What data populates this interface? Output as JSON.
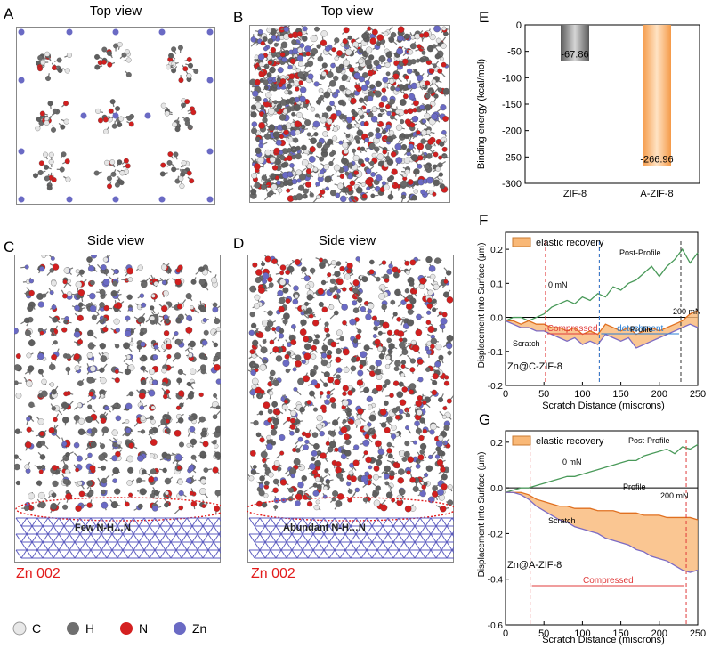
{
  "panels": {
    "A": {
      "letter": "A",
      "title": "Top view"
    },
    "B": {
      "letter": "B",
      "title": "Top view"
    },
    "C": {
      "letter": "C",
      "title": "Side view",
      "hbond_label": "Few N-H…N",
      "substrate": "Zn 002"
    },
    "D": {
      "letter": "D",
      "title": "Side view",
      "hbond_label": "Abundant N-H…N",
      "substrate": "Zn 002"
    },
    "E": {
      "letter": "E"
    },
    "F": {
      "letter": "F"
    },
    "G": {
      "letter": "G"
    }
  },
  "legend": {
    "items": [
      {
        "label": "C",
        "color": "#e8e8e8"
      },
      {
        "label": "H",
        "color": "#6f6f6f"
      },
      {
        "label": "N",
        "color": "#d42020"
      },
      {
        "label": "Zn",
        "color": "#6a6ac4"
      }
    ]
  },
  "chart_data": [
    {
      "id": "E",
      "type": "bar",
      "categories": [
        "ZIF-8",
        "A-ZIF-8"
      ],
      "values": [
        -67.86,
        -266.96
      ],
      "value_labels": [
        "-67.86",
        "-266.96"
      ],
      "colors": [
        "#8a8a8a",
        "#f7a45a"
      ],
      "ylabel": "Binding energy (kcal/mol)",
      "ylim": [
        -300,
        0
      ],
      "yticks": [
        0,
        -50,
        -100,
        -150,
        -200,
        -250,
        -300
      ],
      "ytick_labels": [
        "0",
        "-50",
        "-100",
        "-150",
        "-200",
        "-250",
        "-300"
      ]
    },
    {
      "id": "F",
      "type": "line",
      "sample": "Zn@C-ZIF-8",
      "xlabel": "Scratch Distance (miscrons)",
      "ylabel": "Displacement Into Surface (μm)",
      "xlim": [
        0,
        250
      ],
      "ylim": [
        -0.2,
        0.25
      ],
      "xticks": [
        0,
        50,
        100,
        150,
        200,
        250
      ],
      "yticks": [
        -0.2,
        -0.1,
        0.0,
        0.1,
        0.2
      ],
      "ytick_labels": [
        "-0.2",
        "-0.1",
        "0.0",
        "0.1",
        "0.2"
      ],
      "legend": "elastic recovery",
      "annotations": [
        "Post-Profile",
        "0 mN",
        "200 mN",
        "Profile",
        "Scratch",
        "Compressed",
        "detachment"
      ],
      "regions": [
        {
          "label": "Compressed",
          "from": 52,
          "to": 122,
          "color": "#e03b3b"
        },
        {
          "label": "detachment",
          "from": 122,
          "to": 228,
          "color": "#2a7fd4"
        }
      ],
      "series": [
        {
          "name": "Post-Profile",
          "color": "#4a9a5a",
          "x": [
            0,
            10,
            20,
            30,
            40,
            50,
            60,
            70,
            80,
            90,
            100,
            110,
            120,
            130,
            140,
            150,
            160,
            170,
            180,
            190,
            200,
            210,
            220,
            230,
            240,
            250
          ],
          "y": [
            -0.01,
            0.0,
            0.0,
            -0.01,
            0.0,
            0.01,
            0.03,
            0.04,
            0.05,
            0.04,
            0.06,
            0.05,
            0.07,
            0.06,
            0.09,
            0.08,
            0.1,
            0.11,
            0.13,
            0.15,
            0.12,
            0.15,
            0.17,
            0.2,
            0.16,
            0.19
          ]
        },
        {
          "name": "Profile",
          "color": "#e07020",
          "x": [
            0,
            10,
            20,
            30,
            40,
            50,
            60,
            70,
            80,
            90,
            100,
            110,
            120,
            130,
            140,
            150,
            160,
            170,
            180,
            190,
            200,
            210,
            220,
            230,
            240,
            250
          ],
          "y": [
            -0.01,
            -0.01,
            -0.02,
            -0.01,
            -0.02,
            -0.02,
            -0.03,
            -0.03,
            -0.04,
            -0.03,
            -0.05,
            -0.04,
            -0.05,
            -0.02,
            -0.03,
            -0.04,
            -0.03,
            -0.05,
            -0.04,
            -0.03,
            -0.04,
            -0.03,
            -0.02,
            -0.01,
            0.01,
            0.02
          ]
        },
        {
          "name": "Scratch",
          "color": "#7c6bc4",
          "x": [
            0,
            10,
            20,
            30,
            40,
            50,
            60,
            70,
            80,
            90,
            100,
            110,
            120,
            130,
            140,
            150,
            160,
            170,
            180,
            190,
            200,
            210,
            220,
            230,
            240,
            250
          ],
          "y": [
            -0.01,
            -0.02,
            -0.03,
            -0.03,
            -0.04,
            -0.04,
            -0.05,
            -0.06,
            -0.07,
            -0.06,
            -0.08,
            -0.07,
            -0.08,
            -0.05,
            -0.06,
            -0.07,
            -0.06,
            -0.09,
            -0.08,
            -0.07,
            -0.06,
            -0.05,
            -0.04,
            -0.03,
            -0.02,
            -0.03
          ]
        }
      ]
    },
    {
      "id": "G",
      "type": "line",
      "sample": "Zn@A-ZIF-8",
      "xlabel": "Scratch Distance (miscrons)",
      "ylabel": "Displacement Into Surface (μm)",
      "xlim": [
        0,
        250
      ],
      "ylim": [
        -0.6,
        0.25
      ],
      "xticks": [
        0,
        50,
        100,
        150,
        200,
        250
      ],
      "yticks": [
        -0.6,
        -0.4,
        -0.2,
        0.0,
        0.2
      ],
      "ytick_labels": [
        "-0.6",
        "-0.4",
        "-0.2",
        "0.0",
        "0.2"
      ],
      "legend": "elastic recovery",
      "annotations": [
        "Post-Profile",
        "0 mN",
        "200 mN",
        "Profile",
        "Scratch",
        "Compressed"
      ],
      "regions": [
        {
          "label": "Compressed",
          "from": 32,
          "to": 235,
          "color": "#e03b3b"
        }
      ],
      "series": [
        {
          "name": "Post-Profile",
          "color": "#4a9a5a",
          "x": [
            0,
            10,
            20,
            30,
            40,
            50,
            60,
            70,
            80,
            90,
            100,
            110,
            120,
            130,
            140,
            150,
            160,
            170,
            180,
            190,
            200,
            210,
            220,
            230,
            240,
            250
          ],
          "y": [
            -0.02,
            -0.01,
            0.0,
            0.0,
            0.01,
            0.02,
            0.03,
            0.04,
            0.05,
            0.05,
            0.06,
            0.07,
            0.08,
            0.09,
            0.1,
            0.11,
            0.12,
            0.12,
            0.14,
            0.15,
            0.16,
            0.17,
            0.15,
            0.18,
            0.17,
            0.19
          ]
        },
        {
          "name": "Profile",
          "color": "#e07020",
          "x": [
            0,
            10,
            20,
            30,
            40,
            50,
            60,
            70,
            80,
            90,
            100,
            110,
            120,
            130,
            140,
            150,
            160,
            170,
            180,
            190,
            200,
            210,
            220,
            230,
            240,
            250
          ],
          "y": [
            -0.02,
            -0.02,
            -0.02,
            -0.03,
            -0.05,
            -0.06,
            -0.07,
            -0.08,
            -0.08,
            -0.09,
            -0.09,
            -0.09,
            -0.1,
            -0.1,
            -0.1,
            -0.11,
            -0.11,
            -0.11,
            -0.12,
            -0.12,
            -0.12,
            -0.13,
            -0.13,
            -0.13,
            -0.13,
            -0.14
          ]
        },
        {
          "name": "Scratch",
          "color": "#7c6bc4",
          "x": [
            0,
            10,
            20,
            30,
            40,
            50,
            60,
            70,
            80,
            90,
            100,
            110,
            120,
            130,
            140,
            150,
            160,
            170,
            180,
            190,
            200,
            210,
            220,
            230,
            240,
            250
          ],
          "y": [
            -0.02,
            -0.02,
            -0.03,
            -0.05,
            -0.08,
            -0.1,
            -0.12,
            -0.14,
            -0.15,
            -0.17,
            -0.18,
            -0.19,
            -0.2,
            -0.22,
            -0.23,
            -0.24,
            -0.25,
            -0.27,
            -0.28,
            -0.3,
            -0.31,
            -0.32,
            -0.34,
            -0.36,
            -0.37,
            -0.36
          ]
        }
      ]
    }
  ]
}
